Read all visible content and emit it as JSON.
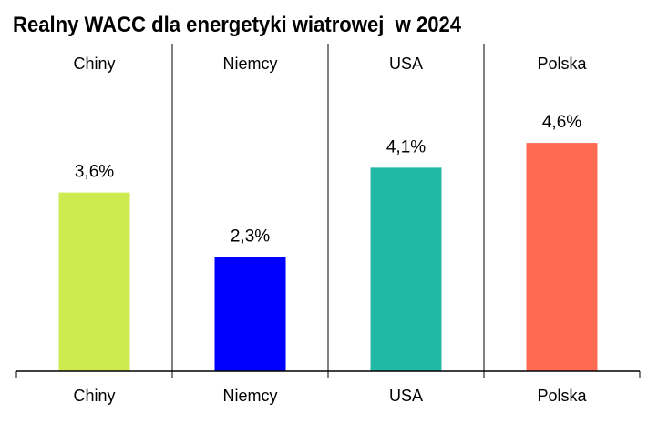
{
  "chart_data": {
    "type": "bar",
    "title": "Realny WACC dla energetyki wiatrowej  w 2024",
    "categories": [
      "Chiny",
      "Niemcy",
      "USA",
      "Polska"
    ],
    "values": [
      3.6,
      2.3,
      4.1,
      4.6
    ],
    "value_labels": [
      "3,6%",
      "2,3%",
      "4,1%",
      "4,6%"
    ],
    "colors": [
      "#CDEB4F",
      "#0000FF",
      "#21B9A6",
      "#FF6A52"
    ],
    "ylim": [
      0,
      6.6
    ],
    "grid": false,
    "legend": "none"
  }
}
